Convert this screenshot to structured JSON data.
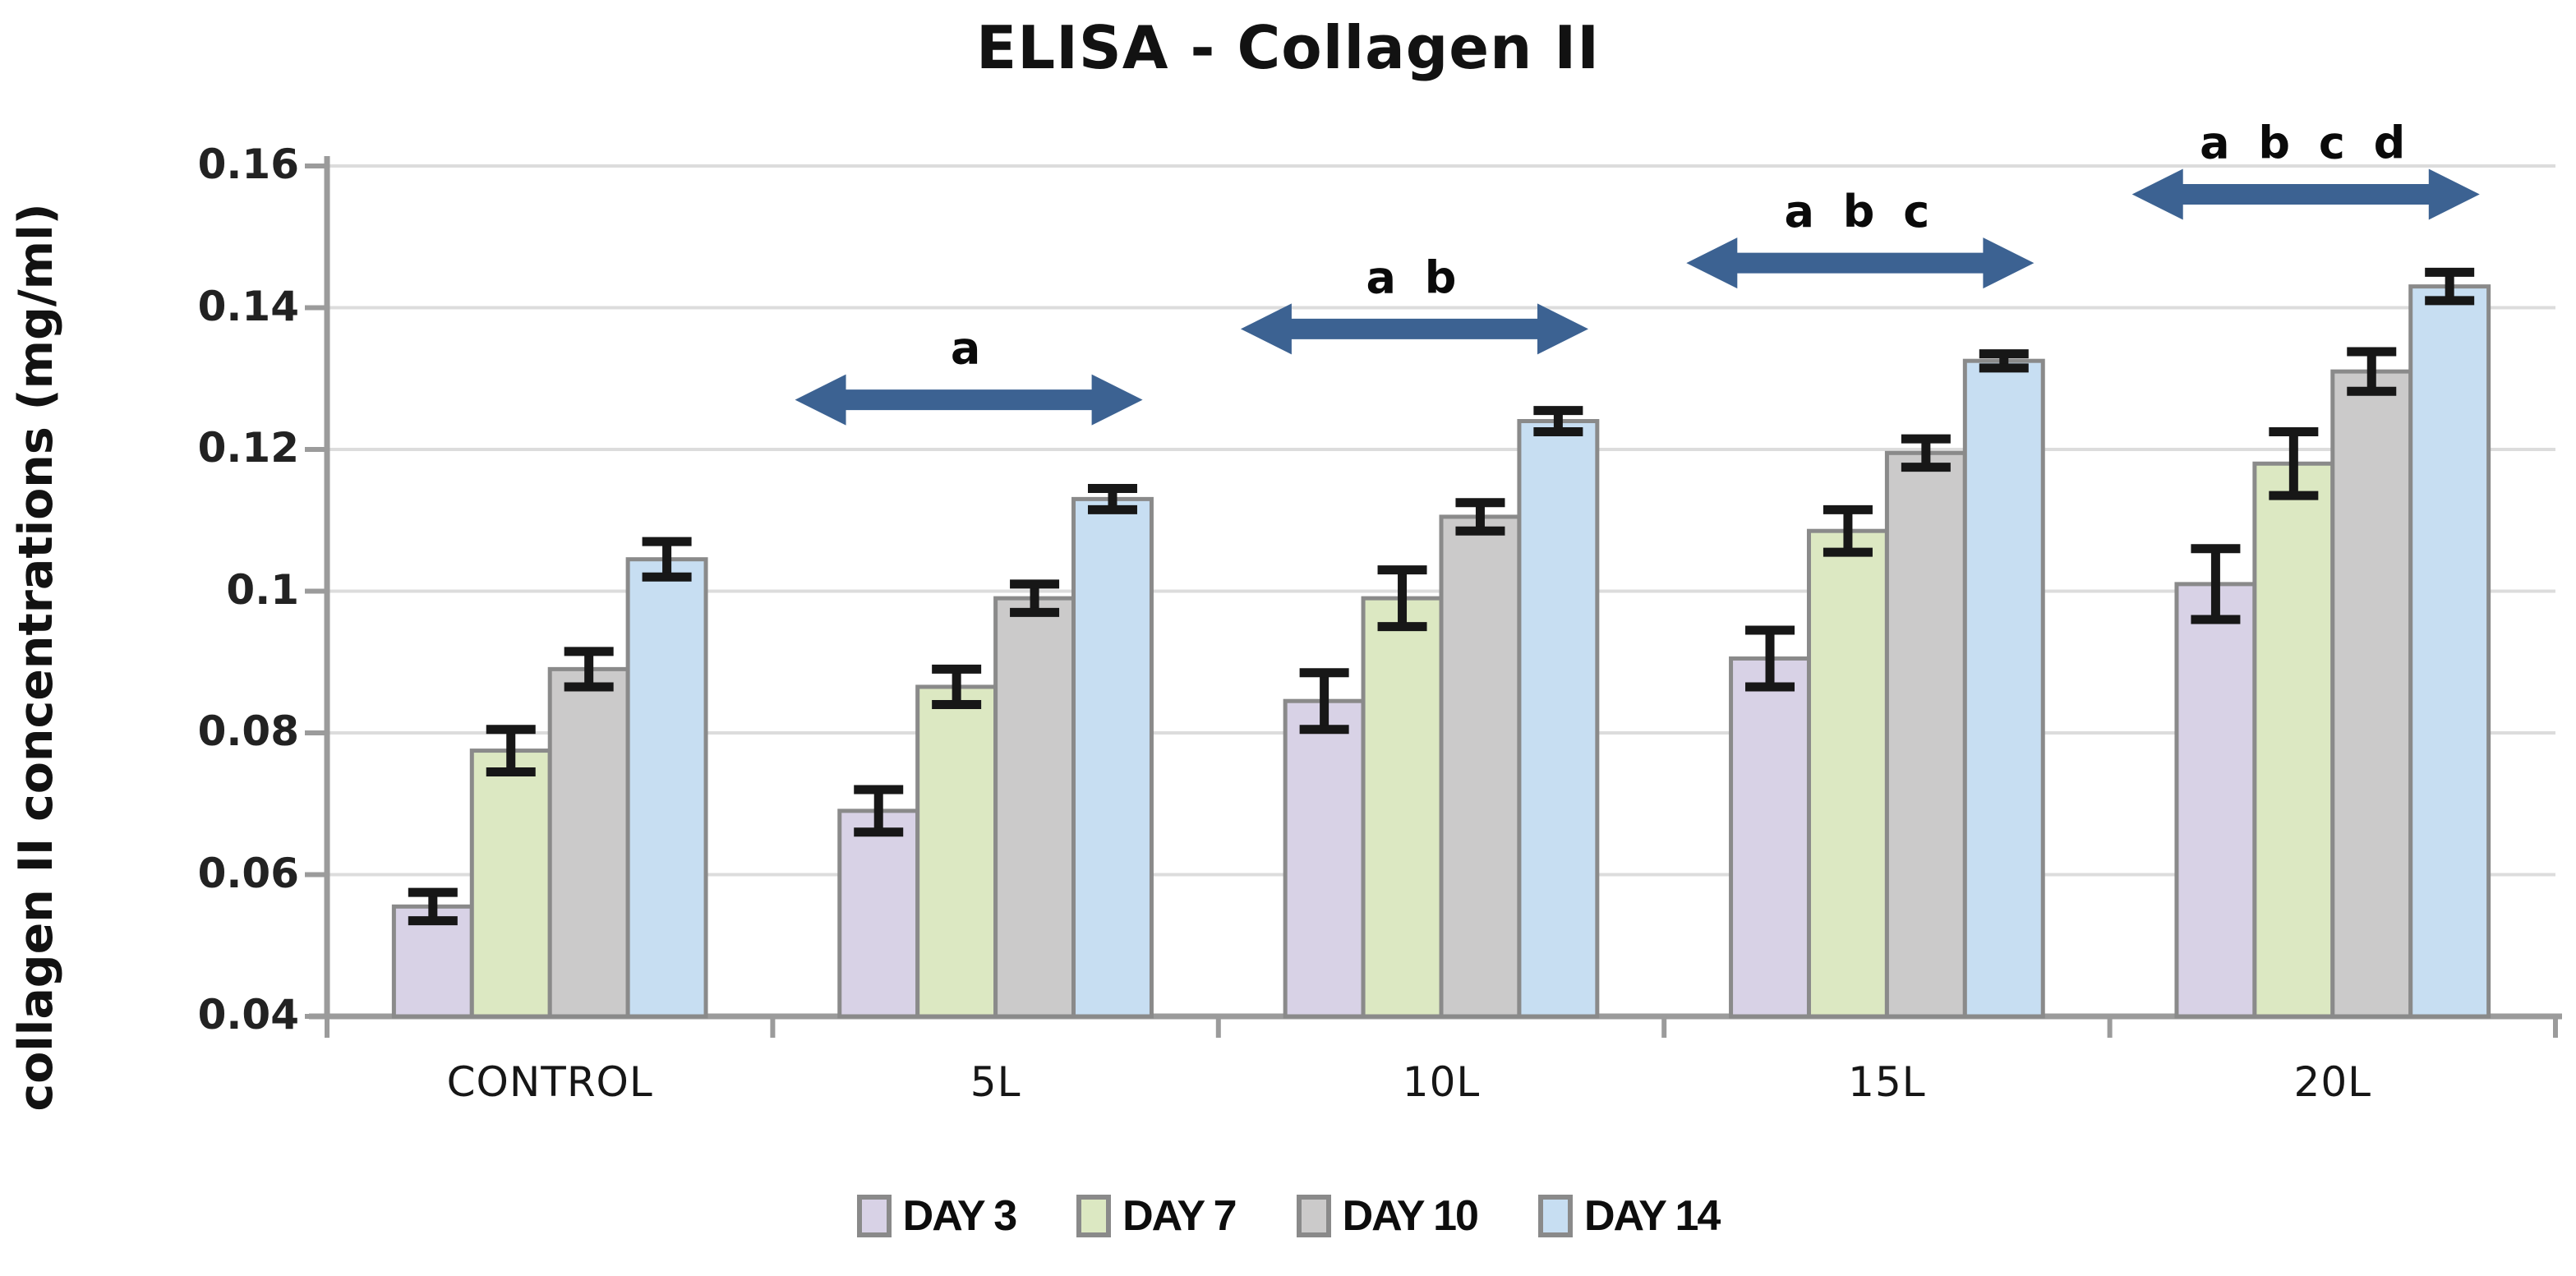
{
  "title": "ELISA - Collagen II",
  "colors": {
    "arrow": "#3c6292",
    "grid": "#dcdcdc",
    "axis": "#9b9b9b",
    "bar_border": "#8a8a8a",
    "error_bar": "#171717",
    "background": "#ffffff",
    "text": "#121212"
  },
  "chart_data": {
    "type": "bar",
    "title": "ELISA - Collagen II",
    "xlabel": "",
    "ylabel": "collagen II concentrations (mg/ml)",
    "ylim": [
      0.04,
      0.16
    ],
    "yticks": [
      0.04,
      0.06,
      0.08,
      0.1,
      0.12,
      0.14,
      0.16
    ],
    "ytick_labels": [
      "0.04",
      "0.06",
      "0.08",
      "0.1",
      "0.12",
      "0.14",
      "0.16"
    ],
    "grid": true,
    "legend_position": "bottom",
    "categories": [
      "CONTROL",
      "5L",
      "10L",
      "15L",
      "20L"
    ],
    "series": [
      {
        "name": "DAY 3",
        "color": "#d8d2e6",
        "values": [
          0.0555,
          0.069,
          0.0845,
          0.0905,
          0.101
        ],
        "errors": [
          0.002,
          0.003,
          0.004,
          0.004,
          0.005
        ]
      },
      {
        "name": "DAY 7",
        "color": "#dce8c2",
        "values": [
          0.0775,
          0.0865,
          0.099,
          0.1085,
          0.118
        ],
        "errors": [
          0.003,
          0.0025,
          0.004,
          0.003,
          0.0045
        ]
      },
      {
        "name": "DAY 10",
        "color": "#cbcaca",
        "values": [
          0.089,
          0.099,
          0.1105,
          0.1195,
          0.131
        ],
        "errors": [
          0.0025,
          0.002,
          0.002,
          0.002,
          0.0028
        ]
      },
      {
        "name": "DAY 14",
        "color": "#c7def2",
        "values": [
          0.1045,
          0.113,
          0.124,
          0.1325,
          0.143
        ],
        "errors": [
          0.0025,
          0.0015,
          0.0015,
          0.001,
          0.002
        ]
      }
    ],
    "annotations": [
      {
        "label": "a",
        "category": "5L",
        "y": 0.127
      },
      {
        "label": "a b",
        "category": "10L",
        "y": 0.137
      },
      {
        "label": "a b c",
        "category": "15L",
        "y": 0.1463
      },
      {
        "label": "a b c d",
        "category": "20L",
        "y": 0.156
      }
    ]
  }
}
